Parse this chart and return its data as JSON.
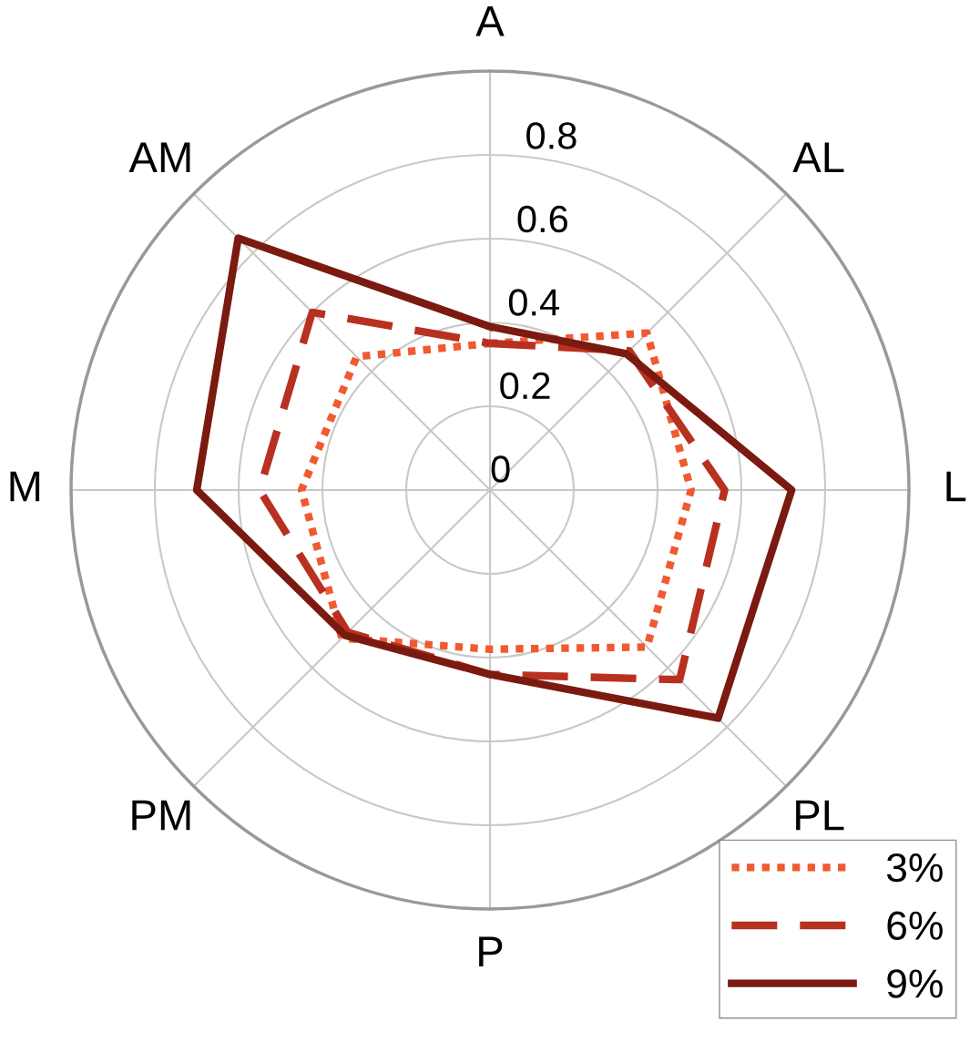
{
  "chart_data": {
    "type": "radar",
    "categories": [
      "A",
      "AL",
      "L",
      "PL",
      "P",
      "PM",
      "M",
      "AM"
    ],
    "series": [
      {
        "name": "3%",
        "color": "#f05a30",
        "line_style": "dotted",
        "values": [
          0.35,
          0.53,
          0.48,
          0.53,
          0.38,
          0.5,
          0.45,
          0.45
        ]
      },
      {
        "name": "6%",
        "color": "#b83020",
        "line_style": "dashed",
        "values": [
          0.35,
          0.47,
          0.56,
          0.64,
          0.44,
          0.48,
          0.55,
          0.6
        ]
      },
      {
        "name": "9%",
        "color": "#7a1a10",
        "line_style": "solid",
        "values": [
          0.39,
          0.46,
          0.72,
          0.77,
          0.44,
          0.49,
          0.7,
          0.85
        ]
      }
    ],
    "ylim": [
      0,
      1
    ],
    "yticks": [
      0,
      0.2,
      0.4,
      0.6,
      0.8
    ],
    "grid": true,
    "legend": "bottom right",
    "marker": "none"
  }
}
